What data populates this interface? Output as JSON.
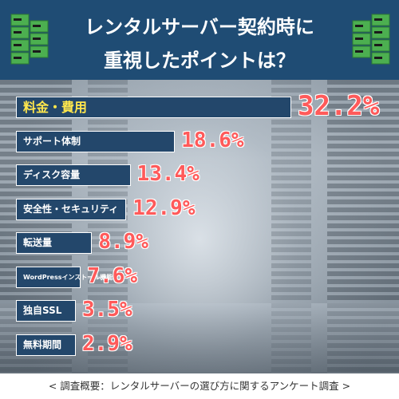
{
  "header": {
    "title_line1": "レンタルサーバー契約時に",
    "title_line2": "重視したポイントは？"
  },
  "chart_data": {
    "type": "bar",
    "orientation": "horizontal",
    "categories": [
      "料金・費用",
      "サポート体制",
      "ディスク容量",
      "安全性・セキュリティ",
      "転送量",
      "WordPressインストール機能",
      "独自SSL",
      "無料期間"
    ],
    "values": [
      32.2,
      18.6,
      13.4,
      12.9,
      8.9,
      7.6,
      3.5,
      2.9
    ],
    "value_labels": [
      "32.2%",
      "18.6%",
      "13.4%",
      "12.9%",
      "8.9%",
      "7.6%",
      "3.5%",
      "2.9%"
    ],
    "highlight_color": "#ffe74c",
    "bar_color": "#23476b",
    "value_color": "#ff5a5a"
  },
  "footnote": "< 調査概要：レンタルサーバーの選び方に関するアンケート調査 >"
}
